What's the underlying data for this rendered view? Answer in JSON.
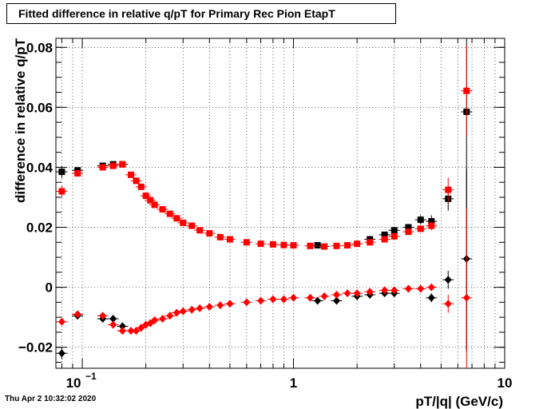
{
  "chart_data": {
    "type": "scatter",
    "title": "Fitted difference in relative q/pT for Primary Rec Pion EtapT",
    "xlabel": "pT/|q| (GeV/c)",
    "ylabel": "difference in relative q/pT",
    "x_scale": "log",
    "xlim": [
      0.075,
      10
    ],
    "ylim": [
      -0.027,
      0.083
    ],
    "grid": true,
    "x_tick_labels": [
      "10^-1",
      "1",
      "10"
    ],
    "y_ticks": [
      -0.02,
      0,
      0.02,
      0.04,
      0.06,
      0.08
    ],
    "y_tick_labels": [
      "−0.02",
      "0",
      "0.02",
      "0.04",
      "0.06",
      "0.08"
    ],
    "colors": {
      "black_series": "#000000",
      "red_series": "#ff0000"
    },
    "series": [
      {
        "marker": "square",
        "color": "#000000",
        "x": [
          0.08,
          0.095,
          0.125,
          0.14,
          0.155,
          1.3,
          2.3,
          2.7,
          3.0,
          3.5,
          4.0,
          4.5,
          5.4,
          6.6
        ],
        "y": [
          0.0385,
          0.039,
          0.0405,
          0.041,
          0.041,
          0.014,
          0.016,
          0.0175,
          0.019,
          0.02,
          0.0225,
          0.022,
          0.0295,
          0.0585
        ],
        "yerr": [
          0.002,
          0.001,
          0.001,
          0.001,
          0.001,
          0.0008,
          0.0008,
          0.0008,
          0.0008,
          0.001,
          0.0015,
          0.002,
          0.004,
          0.08
        ]
      },
      {
        "marker": "square",
        "color": "#ff0000",
        "x": [
          0.08,
          0.095,
          0.125,
          0.14,
          0.155,
          0.17,
          0.18,
          0.19,
          0.2,
          0.21,
          0.22,
          0.24,
          0.26,
          0.28,
          0.3,
          0.33,
          0.36,
          0.4,
          0.45,
          0.5,
          0.6,
          0.7,
          0.8,
          0.9,
          1.0,
          1.2,
          1.4,
          1.6,
          1.8,
          2.0,
          2.3,
          2.7,
          3.0,
          3.5,
          4.0,
          4.5,
          5.4,
          6.6
        ],
        "y": [
          0.032,
          0.038,
          0.04,
          0.0405,
          0.041,
          0.0375,
          0.0355,
          0.0335,
          0.0305,
          0.029,
          0.0275,
          0.026,
          0.0245,
          0.023,
          0.0215,
          0.0205,
          0.019,
          0.018,
          0.0167,
          0.016,
          0.015,
          0.0145,
          0.0143,
          0.0141,
          0.014,
          0.0138,
          0.0136,
          0.0138,
          0.014,
          0.0145,
          0.015,
          0.016,
          0.017,
          0.0185,
          0.0195,
          0.0205,
          0.0325,
          0.0655
        ],
        "yerr": [
          0.002,
          0.001,
          0.001,
          0.001,
          0.001,
          0.001,
          0.0008,
          0.0008,
          0.0008,
          0.0008,
          0.0008,
          0.0008,
          0.0008,
          0.0008,
          0.0008,
          0.0008,
          0.0008,
          0.0008,
          0.0008,
          0.0008,
          0.0008,
          0.0008,
          0.0008,
          0.0008,
          0.0008,
          0.0008,
          0.0008,
          0.0008,
          0.0008,
          0.0008,
          0.0008,
          0.0008,
          0.0008,
          0.001,
          0.001,
          0.0015,
          0.004,
          0.015
        ]
      },
      {
        "marker": "diamond",
        "color": "#000000",
        "x": [
          0.08,
          0.095,
          0.125,
          0.14,
          0.155,
          1.3,
          1.6,
          2.0,
          2.3,
          2.7,
          3.0,
          4.5,
          5.4,
          6.6
        ],
        "y": [
          -0.022,
          -0.0095,
          -0.0105,
          -0.0105,
          -0.013,
          -0.0045,
          -0.0045,
          -0.003,
          -0.0025,
          -0.002,
          -0.002,
          -0.0035,
          0.0025,
          0.0095
        ],
        "yerr": [
          0.002,
          0.001,
          0.001,
          0.001,
          0.001,
          0.0006,
          0.0006,
          0.0006,
          0.0006,
          0.0006,
          0.0006,
          0.0015,
          0.003,
          0.03
        ]
      },
      {
        "marker": "diamond",
        "color": "#ff0000",
        "x": [
          0.08,
          0.095,
          0.125,
          0.14,
          0.155,
          0.17,
          0.18,
          0.19,
          0.2,
          0.21,
          0.22,
          0.24,
          0.26,
          0.28,
          0.3,
          0.33,
          0.36,
          0.4,
          0.45,
          0.5,
          0.6,
          0.7,
          0.8,
          0.9,
          1.0,
          1.2,
          1.4,
          1.6,
          1.8,
          2.0,
          2.3,
          2.7,
          3.0,
          3.5,
          4.0,
          4.5,
          5.4,
          6.6
        ],
        "y": [
          -0.0115,
          -0.009,
          -0.0095,
          -0.0125,
          -0.0145,
          -0.0145,
          -0.0145,
          -0.0135,
          -0.0125,
          -0.012,
          -0.011,
          -0.0105,
          -0.0095,
          -0.0085,
          -0.008,
          -0.0075,
          -0.007,
          -0.0065,
          -0.006,
          -0.0055,
          -0.005,
          -0.0045,
          -0.004,
          -0.004,
          -0.0035,
          -0.0035,
          -0.003,
          -0.0025,
          -0.002,
          -0.002,
          -0.0015,
          -0.001,
          -0.001,
          -0.0005,
          -0.0005,
          0.0,
          -0.0055,
          -0.0035
        ],
        "yerr": [
          0.001,
          0.001,
          0.001,
          0.001,
          0.001,
          0.0008,
          0.0008,
          0.0008,
          0.0008,
          0.0008,
          0.0006,
          0.0006,
          0.0006,
          0.0006,
          0.0006,
          0.0006,
          0.0006,
          0.0006,
          0.0006,
          0.0006,
          0.0006,
          0.0006,
          0.0006,
          0.0006,
          0.0006,
          0.0006,
          0.0006,
          0.0006,
          0.0006,
          0.0006,
          0.0006,
          0.0006,
          0.0006,
          0.0006,
          0.001,
          0.001,
          0.003,
          0.03
        ]
      }
    ]
  },
  "footer": {
    "timestamp": "Thu Apr  2 10:32:02 2020"
  }
}
